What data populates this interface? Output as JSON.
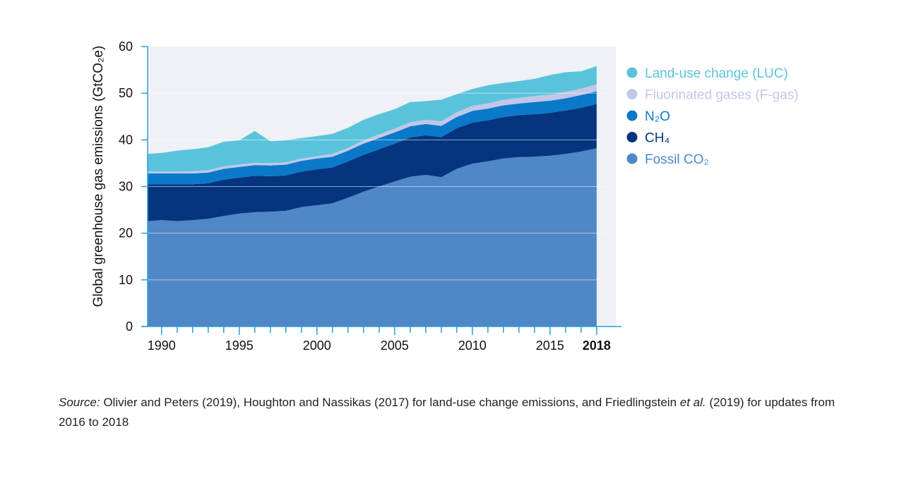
{
  "chart_data": {
    "type": "area",
    "stacked": true,
    "ylabel": "Global greenhouse gas emissions (GtCO₂e)",
    "xlabel": "",
    "ylim": [
      0,
      60
    ],
    "xlim": [
      1989.1,
      2018.6
    ],
    "yticks": [
      "0",
      "10",
      "20",
      "30",
      "40",
      "50",
      "60"
    ],
    "xticks": [
      {
        "value": 1990,
        "label": "1990",
        "bold": false
      },
      {
        "value": 1995,
        "label": "1995",
        "bold": false
      },
      {
        "value": 2000,
        "label": "2000",
        "bold": false
      },
      {
        "value": 2005,
        "label": "2005",
        "bold": false
      },
      {
        "value": 2010,
        "label": "2010",
        "bold": false
      },
      {
        "value": 2015,
        "label": "2015",
        "bold": false
      },
      {
        "value": 2018,
        "label": "2018",
        "bold": true
      }
    ],
    "grid": true,
    "legend_position": "right",
    "plot_background": "#eef1f5",
    "x": [
      1989.1,
      1990,
      1991,
      1992,
      1993,
      1994,
      1995,
      1996,
      1997,
      1998,
      1999,
      2000,
      2001,
      2002,
      2003,
      2004,
      2005,
      2006,
      2007,
      2008,
      2009,
      2010,
      2011,
      2012,
      2013,
      2014,
      2015,
      2016,
      2017,
      2018
    ],
    "series": [
      {
        "name": "Fossil CO₂",
        "color": "#4f87c7",
        "values": [
          22.6,
          22.8,
          22.6,
          22.8,
          23.1,
          23.7,
          24.2,
          24.5,
          24.6,
          24.8,
          25.6,
          26.0,
          26.4,
          27.6,
          28.9,
          30.0,
          31.1,
          32.1,
          32.5,
          32.0,
          33.8,
          34.9,
          35.4,
          36.0,
          36.3,
          36.4,
          36.6,
          37.0,
          37.5,
          38.2
        ]
      },
      {
        "name": "CH₄",
        "color": "#06357f",
        "values": [
          7.9,
          7.7,
          7.9,
          7.7,
          7.6,
          7.8,
          7.7,
          7.8,
          7.6,
          7.6,
          7.6,
          7.7,
          7.7,
          7.8,
          7.9,
          8.0,
          8.1,
          8.4,
          8.5,
          8.6,
          8.7,
          8.8,
          8.8,
          8.9,
          9.0,
          9.1,
          9.2,
          9.3,
          9.4,
          9.5
        ]
      },
      {
        "name": "N₂O",
        "color": "#0b79c9",
        "values": [
          2.3,
          2.3,
          2.3,
          2.3,
          2.3,
          2.3,
          2.3,
          2.3,
          2.3,
          2.3,
          2.3,
          2.3,
          2.3,
          2.3,
          2.4,
          2.4,
          2.4,
          2.4,
          2.4,
          2.4,
          2.4,
          2.5,
          2.5,
          2.5,
          2.5,
          2.6,
          2.6,
          2.6,
          2.7,
          2.7
        ]
      },
      {
        "name": "Fluorinated gases (F-gas)",
        "color": "#c2c7e8",
        "values": [
          0.4,
          0.4,
          0.4,
          0.5,
          0.5,
          0.5,
          0.5,
          0.5,
          0.5,
          0.5,
          0.5,
          0.5,
          0.6,
          0.6,
          0.7,
          0.8,
          0.8,
          0.9,
          0.9,
          1.0,
          1.0,
          1.1,
          1.1,
          1.2,
          1.2,
          1.3,
          1.3,
          1.4,
          1.4,
          1.5
        ]
      },
      {
        "name": "Land-use change (LUC)",
        "color": "#5ac3dc",
        "values": [
          3.8,
          4.0,
          4.5,
          4.7,
          4.9,
          5.3,
          5.2,
          6.8,
          4.7,
          4.7,
          4.4,
          4.3,
          4.3,
          4.3,
          4.4,
          4.3,
          4.2,
          4.3,
          4.0,
          4.6,
          3.9,
          3.6,
          3.9,
          3.6,
          3.6,
          3.7,
          4.2,
          4.2,
          3.7,
          3.9
        ]
      }
    ]
  },
  "source": {
    "label": "Source:",
    "text_1": " Olivier and Peters (2019), Houghton and Nassikas (2017) for land-use change emissions, and Friedlingstein ",
    "etal": "et al.",
    "text_2": " (2019) for updates from 2016 to 2018"
  }
}
